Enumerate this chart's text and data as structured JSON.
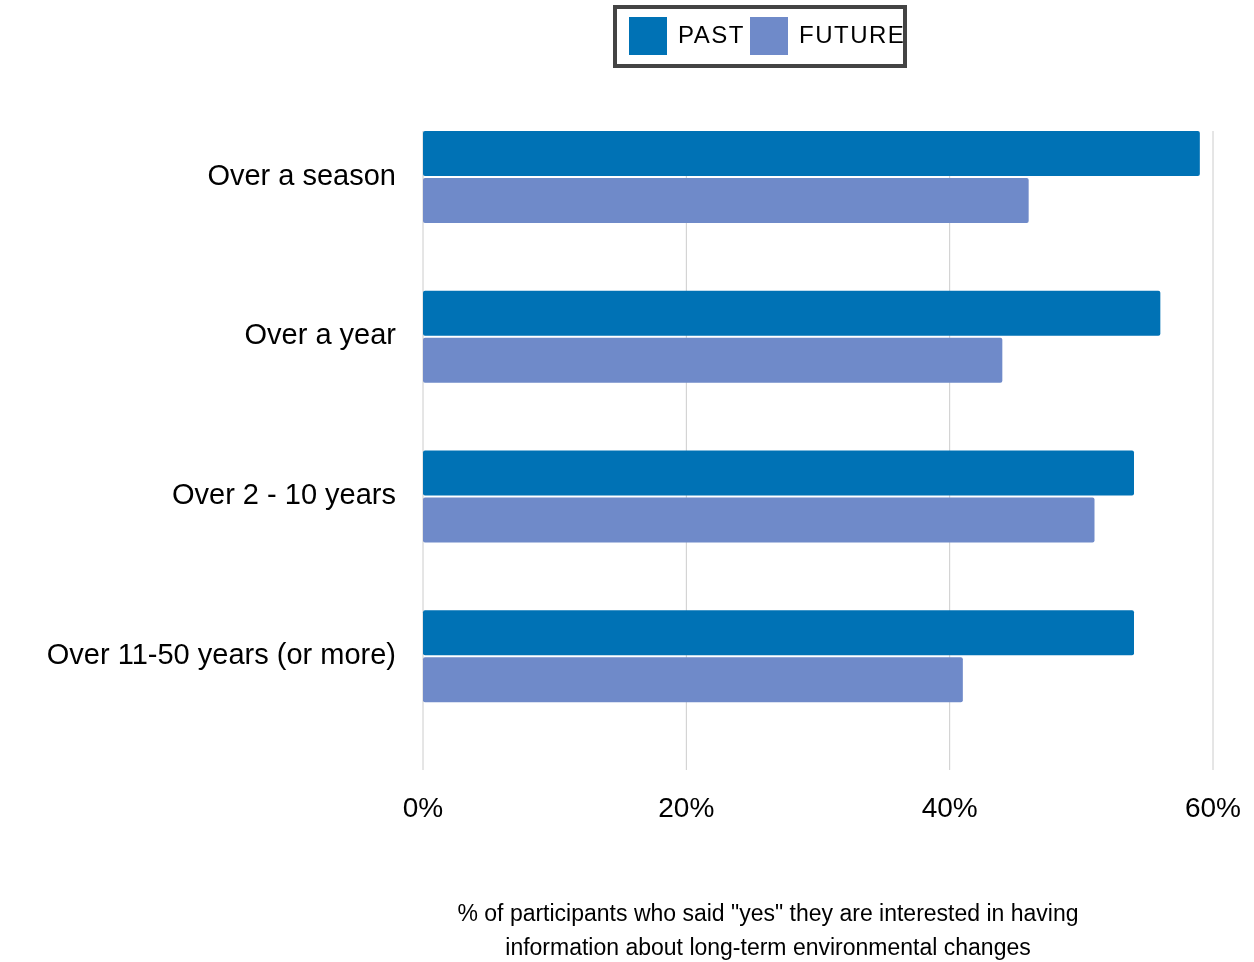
{
  "chart_data": {
    "type": "bar",
    "orientation": "horizontal",
    "xlabel": "% of participants who said \"yes\" they are interested in having information about long-term environmental changes",
    "categories": [
      "Over a season",
      "Over a year",
      "Over 2 - 10 years",
      "Over 11-50 years (or more)"
    ],
    "series": [
      {
        "name": "PAST",
        "color": "#0072b5",
        "values": [
          59,
          56,
          54,
          54
        ]
      },
      {
        "name": "FUTURE",
        "color": "#6f8ac9",
        "values": [
          46,
          44,
          51,
          41
        ]
      }
    ],
    "xlim": [
      0,
      60
    ],
    "xticks": [
      {
        "value": 0,
        "label": "0%"
      },
      {
        "value": 20,
        "label": "20%"
      },
      {
        "value": 40,
        "label": "40%"
      },
      {
        "value": 60,
        "label": "60%"
      }
    ],
    "grid": "x",
    "legend": "top"
  }
}
